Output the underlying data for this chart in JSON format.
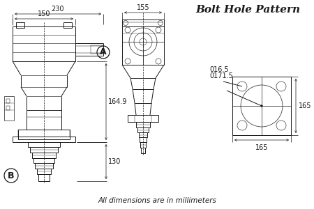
{
  "title": "Bolt Hole Pattern",
  "subtitle": "All dimensions are in millimeters",
  "bg_color": "#ffffff",
  "line_color": "#1a1a1a",
  "dim_230": "230",
  "dim_150": "150",
  "dim_164_9": "164.9",
  "dim_130": "130",
  "dim_155": "155",
  "dim_016_5": "016.5",
  "dim_0171_5": "0171.5",
  "dim_165_h": "165",
  "dim_165_w": "165",
  "label_A": "A",
  "label_B": "B"
}
